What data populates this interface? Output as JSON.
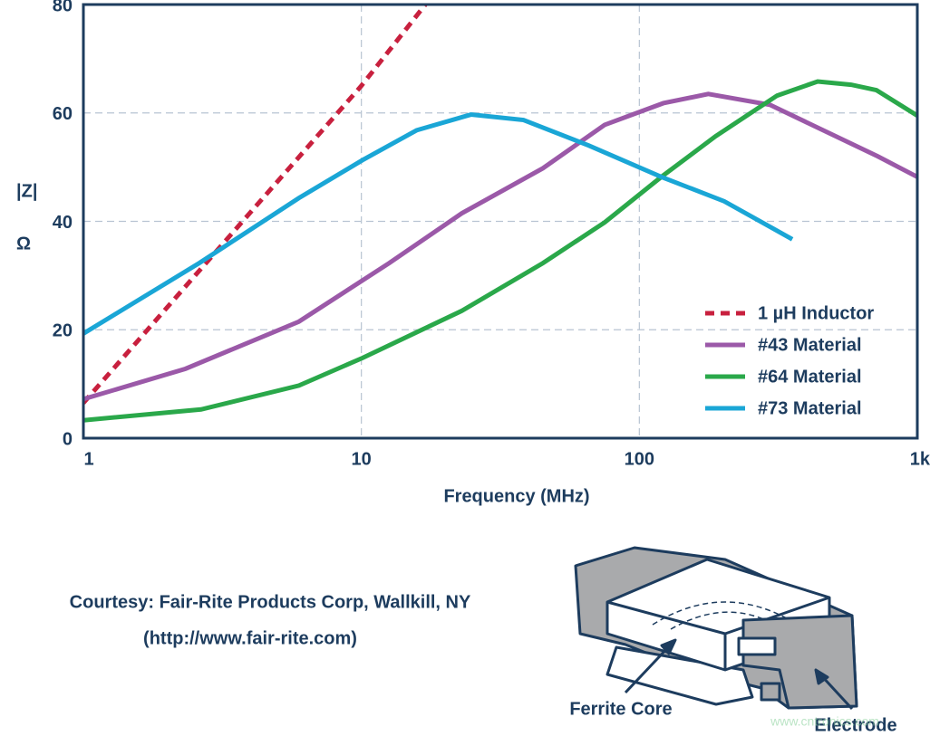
{
  "chart_data": {
    "type": "line",
    "x_label": "Frequency (MHz)",
    "y_label": "|Z|",
    "y_unit": "Ω",
    "x_scale": "log",
    "xlim": [
      1,
      1000
    ],
    "xticks": [
      1,
      10,
      100,
      {
        "value": 1000,
        "label": "1k"
      }
    ],
    "ylim": [
      0,
      80
    ],
    "yticks": [
      0,
      20,
      40,
      60,
      80
    ],
    "grid": true,
    "legend": "lower right",
    "series": [
      {
        "name": "1 µH Inductor",
        "color": "#c8203e",
        "dashed": true,
        "x": [
          1,
          10,
          17
        ],
        "values": [
          6.5,
          65,
          80
        ]
      },
      {
        "name": "#43 Material",
        "color": "#9b59a8",
        "x": [
          1,
          2.33,
          5.96,
          12.6,
          23,
          45,
          75,
          122,
          177,
          295,
          720,
          1000
        ],
        "values": [
          7.2,
          12.8,
          21.5,
          32.3,
          41.5,
          49.8,
          57.8,
          61.8,
          63.5,
          61.5,
          52,
          48.2
        ]
      },
      {
        "name": "#64 Material",
        "color": "#2aa84a",
        "x": [
          1,
          2.65,
          5.96,
          10.1,
          23,
          45,
          75,
          120,
          188,
          313,
          438,
          578,
          713,
          1000
        ],
        "values": [
          3.3,
          5.3,
          9.7,
          14.8,
          23.5,
          32.3,
          39.8,
          48.2,
          55.7,
          63.2,
          65.8,
          65.2,
          64.2,
          59.5
        ]
      },
      {
        "name": "#73 Material",
        "color": "#1aa6d6",
        "x": [
          1,
          2.61,
          5.96,
          10.1,
          15.8,
          24.8,
          38.3,
          65.7,
          120,
          202,
          355
        ],
        "values": [
          19.3,
          32.3,
          44.3,
          51.3,
          56.8,
          59.7,
          58.7,
          54,
          48.2,
          43.7,
          36.7
        ]
      }
    ]
  },
  "courtesy": {
    "line1": "Courtesy: Fair-Rite Products Corp, Wallkill, NY",
    "line2": "(http://www.fair-rite.com)"
  },
  "illustration": {
    "label_core": "Ferrite Core",
    "label_electrode": "Electrode",
    "watermark": "www.cntronics.com"
  }
}
